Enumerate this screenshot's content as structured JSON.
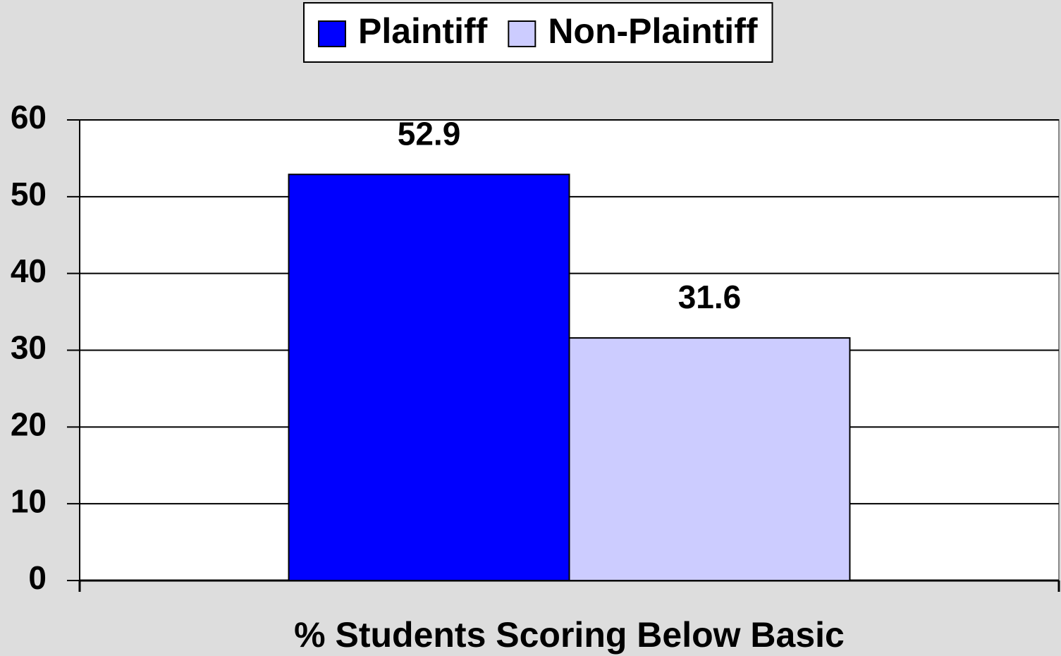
{
  "chart_data": {
    "type": "bar",
    "categories": [
      "% Students Scoring Below Basic"
    ],
    "series": [
      {
        "name": "Plaintiff",
        "color": "#0000ff",
        "values": [
          52.9
        ]
      },
      {
        "name": "Non-Plaintiff",
        "color": "#ccccff",
        "values": [
          31.6
        ]
      }
    ],
    "ylim": [
      0,
      60
    ],
    "yticks": [
      0,
      10,
      20,
      30,
      40,
      50,
      60
    ],
    "grid": true,
    "legend": "top"
  }
}
